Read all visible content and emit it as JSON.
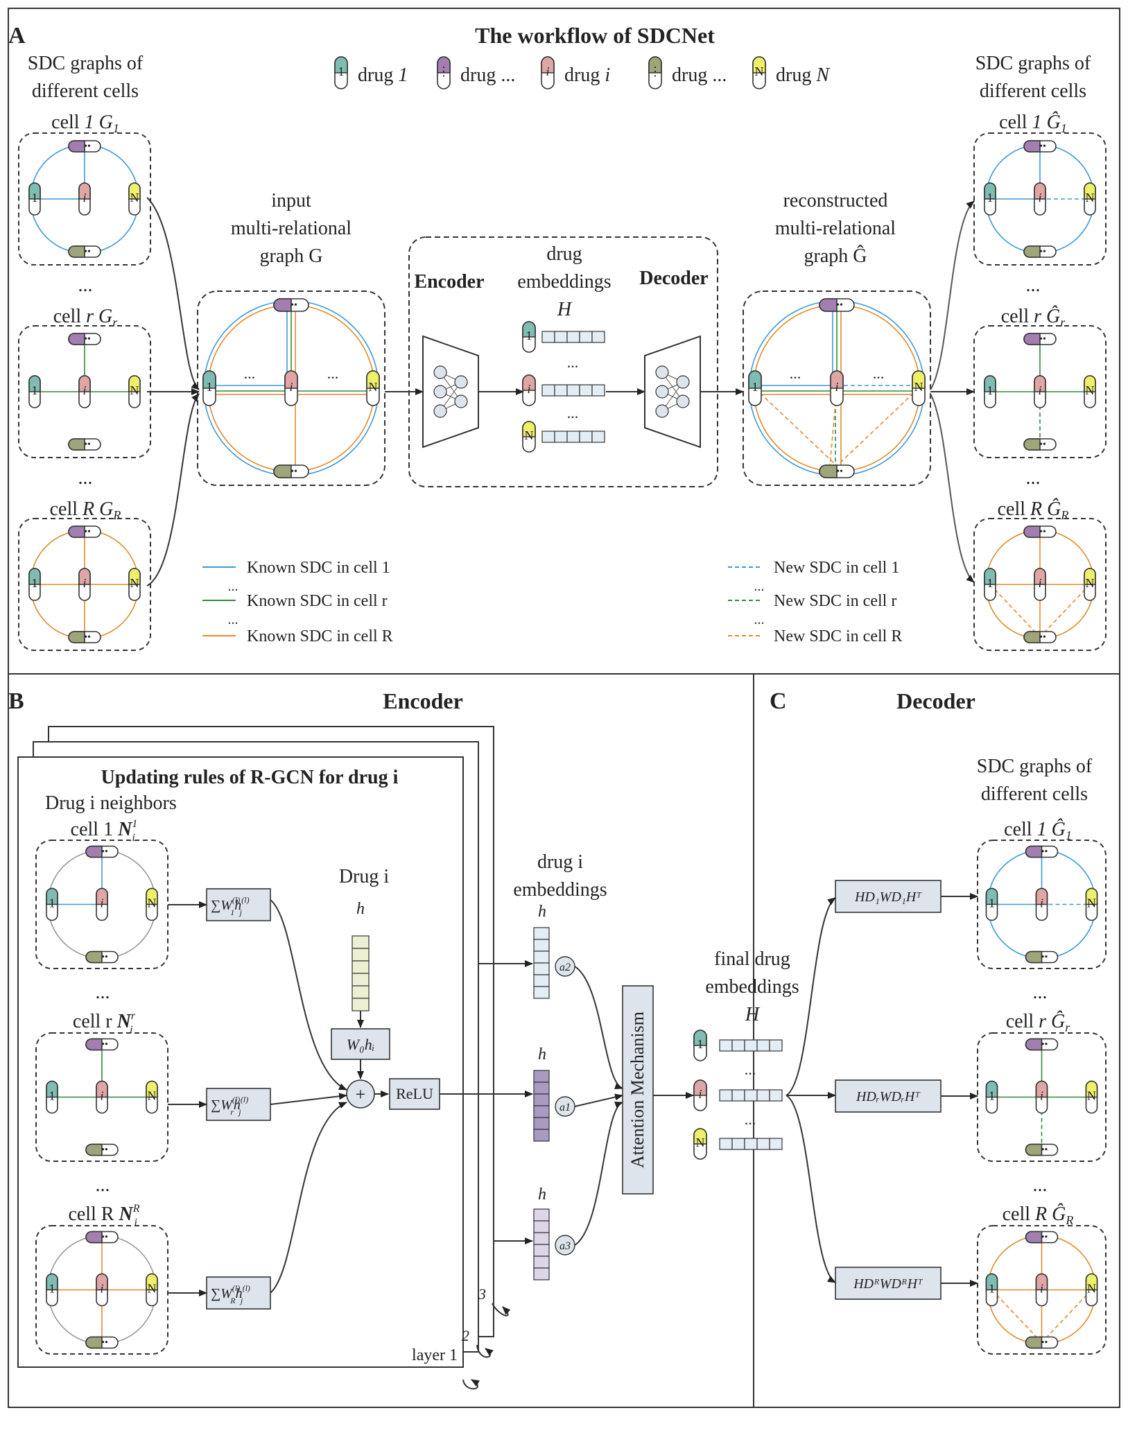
{
  "colors": {
    "blue": "#3a9ad9",
    "green": "#2e8b3a",
    "orange": "#e08a2c",
    "pill_teal": "#7fbcb2",
    "pill_purple": "#a27fb0",
    "pill_pink": "#e0a6a6",
    "pill_olive": "#9fa57a",
    "pill_yellow": "#eef06a",
    "box_fill": "#dde4ec",
    "vec_light": "#e3edf3",
    "vec_yellow": "#eef0d4",
    "vec_purple": "#a99ac4",
    "vec_lavender": "#dcd6e8"
  },
  "panel_a": {
    "letter": "A",
    "title": "The workflow of SDCNet",
    "legend": [
      {
        "pill": "1",
        "label": "drug ",
        "label_it": "1"
      },
      {
        "pill": "⋮",
        "label": "drug ...",
        "label_it": ""
      },
      {
        "pill": "i",
        "label": "drug ",
        "label_it": "i"
      },
      {
        "pill": "⋮",
        "label": "drug ...",
        "label_it": ""
      },
      {
        "pill": "N",
        "label": "drug ",
        "label_it": "N"
      }
    ],
    "left_header": [
      "SDC graphs of",
      "different cells"
    ],
    "right_header": [
      "SDC graphs of",
      "different cells"
    ],
    "cell1": "cell 1 G1",
    "cellr": "cell r Gr",
    "cellR": "cell R GR",
    "dots": "...",
    "input_label": [
      "input",
      "multi-relational",
      "graph G"
    ],
    "recon_label": [
      "reconstructed",
      "multi-relational",
      "graph Ĝ"
    ],
    "encoder": "Encoder",
    "decoder": "Decoder",
    "emb_label": [
      "drug",
      "embeddings",
      "H"
    ],
    "known_legend": [
      "Known SDC in cell 1",
      "Known SDC in cell r",
      "Known SDC in cell R"
    ],
    "new_legend": [
      "New SDC in cell 1",
      "New SDC in cell r",
      "New SDC in cell R"
    ]
  },
  "panel_b": {
    "letter": "B",
    "title": "Encoder",
    "rule_title": "Updating rules of R-GCN for drug i",
    "neighbors_label": "Drug i neighbors",
    "cells": [
      "cell 1",
      "cell r",
      "cell R"
    ],
    "drug_i": "Drug i",
    "relu": "ReLU",
    "emb_label": [
      "drug i",
      "embeddings"
    ],
    "layers": [
      "layer 1",
      "2",
      "3"
    ],
    "attention": "Attention Mechanism",
    "alphas": [
      "a2",
      "a1",
      "a3"
    ]
  },
  "panel_c": {
    "letter": "C",
    "title": "Decoder",
    "final_label": [
      "final drug",
      "embeddings",
      "H"
    ],
    "right_header": [
      "SDC graphs of",
      "different cells"
    ]
  }
}
